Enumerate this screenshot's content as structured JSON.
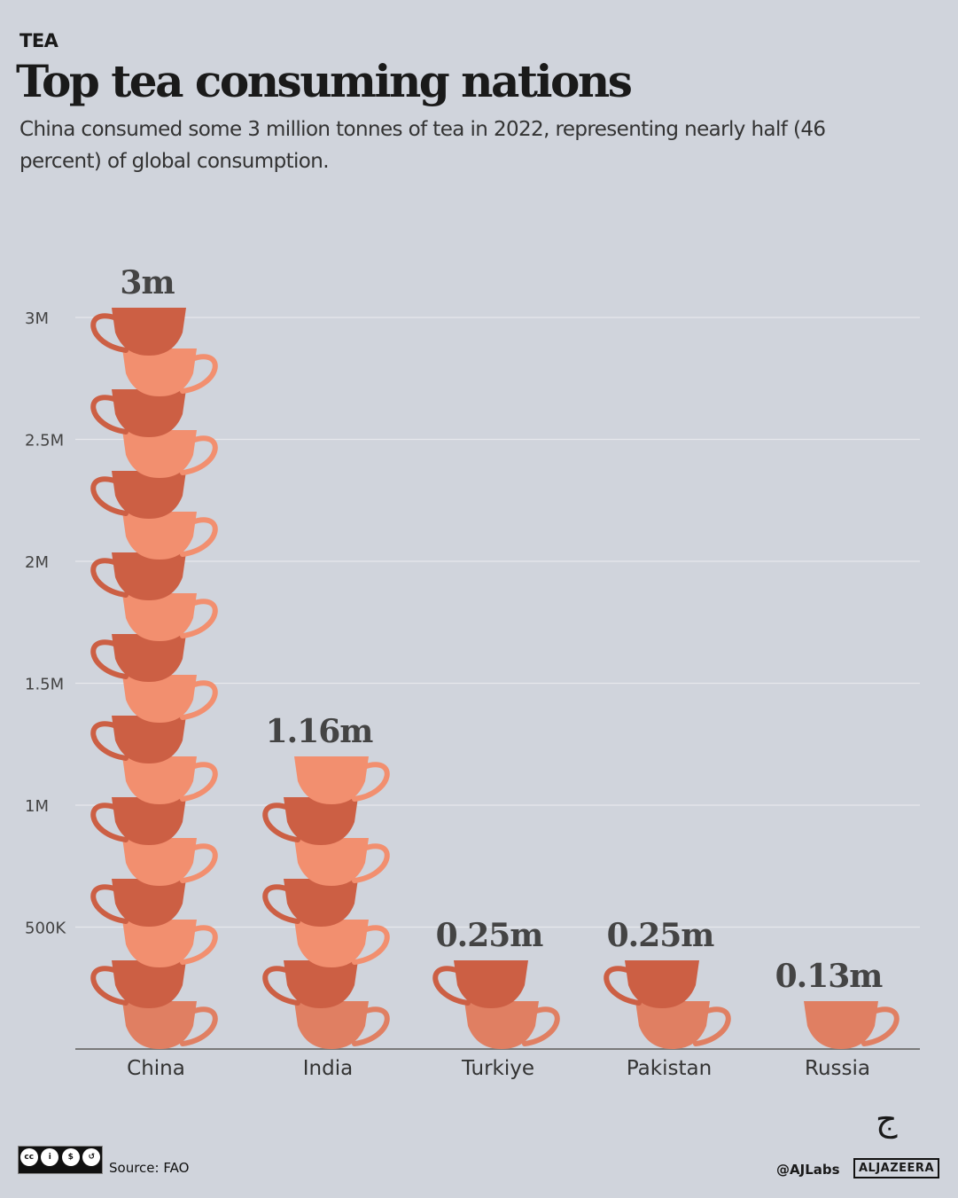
{
  "header": {
    "kicker": "TEA",
    "title": "Top tea consuming nations",
    "subtitle": "China consumed some 3 million tonnes of tea in 2022, representing nearly half (46 percent) of global consumption."
  },
  "chart_data": {
    "type": "bar",
    "title": "Top tea consuming nations",
    "categories": [
      "China",
      "India",
      "Turkiye",
      "Pakistan",
      "Russia"
    ],
    "values": [
      3000000,
      1160000,
      250000,
      250000,
      130000
    ],
    "data_labels": [
      "3m",
      "1.16m",
      "0.25m",
      "0.25m",
      "0.13m"
    ],
    "ylim": [
      0,
      3000000
    ],
    "yticks": [
      500000,
      1000000,
      1500000,
      2000000,
      2500000,
      3000000
    ],
    "ytick_labels": [
      "500K",
      "1M",
      "1.5M",
      "2M",
      "2.5M",
      "3M"
    ],
    "grid": true,
    "mark": "stacked-teacups",
    "colors": {
      "light": "#f28f6f",
      "dark": "#cc5f44",
      "base": "#e07f62",
      "grid": "#e6e8ec",
      "axis": "#7a7a7a"
    }
  },
  "footer": {
    "source": "Source: FAO",
    "license": [
      "cc",
      "by",
      "nc",
      "sa"
    ],
    "handle": "@AJLabs",
    "brand": "ALJAZEERA",
    "logo": "al-jazeera-logo"
  }
}
